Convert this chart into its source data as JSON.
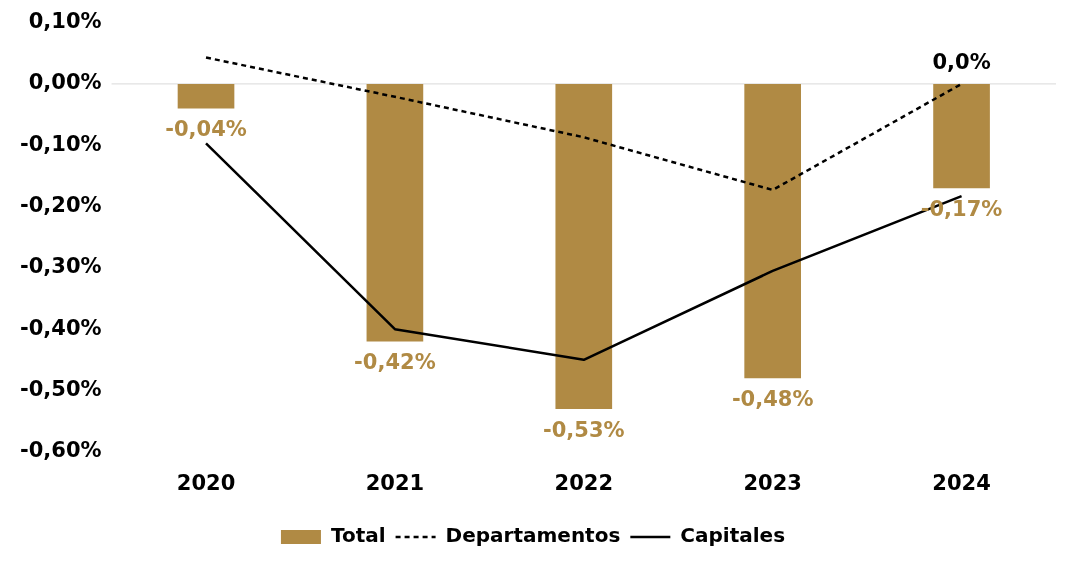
{
  "chart_data": {
    "type": "bar",
    "categories": [
      "2020",
      "2021",
      "2022",
      "2023",
      "2024"
    ],
    "series": [
      {
        "name": "Total",
        "color": "#b08a44",
        "values": [
          -0.04,
          -0.42,
          -0.53,
          -0.48,
          -0.17
        ],
        "value_labels": [
          "-0,04%",
          "-0,42%",
          "-0,53%",
          "-0,48%",
          "-0,17%"
        ]
      },
      {
        "name": "Departamentos",
        "type": "line",
        "color": "#000000",
        "line_style": "dashed",
        "values": [
          0.043,
          -0.021,
          -0.087,
          -0.173,
          0.0
        ],
        "value_labels": [
          null,
          null,
          null,
          null,
          "0,0%"
        ]
      },
      {
        "name": "Capitales",
        "type": "line",
        "color": "#000000",
        "line_style": "solid",
        "values": [
          -0.097,
          -0.4,
          -0.45,
          -0.305,
          -0.183
        ]
      }
    ],
    "ylim": [
      -0.6,
      0.1
    ],
    "yticks": [
      {
        "value": 0.1,
        "label": "0,10%"
      },
      {
        "value": 0,
        "label": "0,00%"
      },
      {
        "value": -0.1,
        "label": "-0,10%"
      },
      {
        "value": -0.2,
        "label": "-0,20%"
      },
      {
        "value": -0.3,
        "label": "-0,30%"
      },
      {
        "value": -0.4,
        "label": "-0,40%"
      },
      {
        "value": -0.5,
        "label": "-0,50%"
      },
      {
        "value": -0.6,
        "label": "-0,60%"
      }
    ],
    "ref_lines": [
      {
        "axis": "y",
        "value": 0,
        "color": "#d9d9d9"
      }
    ],
    "grid": false,
    "legend": "bottom",
    "marker": "none"
  }
}
